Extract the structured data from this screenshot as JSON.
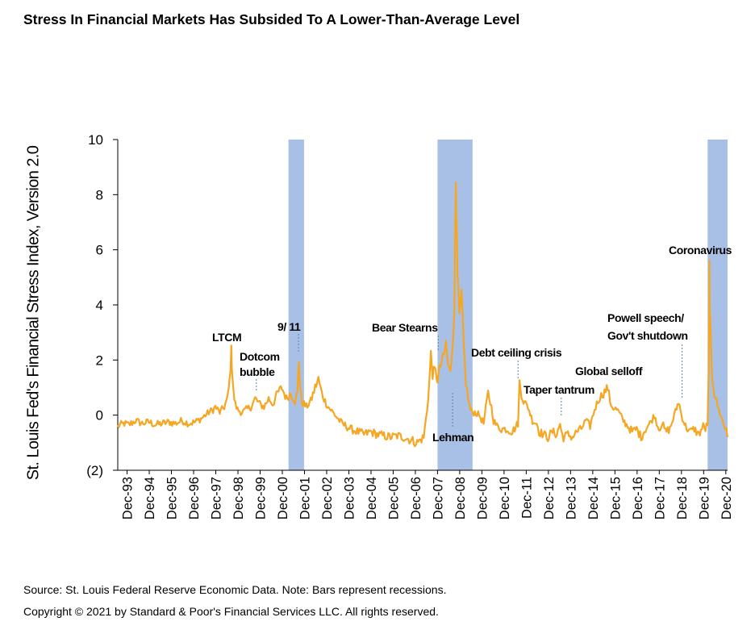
{
  "title": "Stress In Financial Markets Has Subsided To A Lower-Than-Average Level",
  "colors": {
    "line": "#F5A623",
    "recession": "#A9C0E6",
    "annotation_line": "#5B7FB5",
    "text": "#000000"
  },
  "chart_data": {
    "type": "line",
    "title": "Stress In Financial Markets Has Subsided To A Lower-Than-Average Level",
    "ylabel": "St. Louis Fed's Financial Stress Index, Version 2.0",
    "xlabel": "",
    "ylim": [
      -2,
      10
    ],
    "xlim": [
      1993.5,
      2021.0
    ],
    "yticks": [
      {
        "value": 10,
        "label": "10"
      },
      {
        "value": 8,
        "label": "8"
      },
      {
        "value": 6,
        "label": "6"
      },
      {
        "value": 4,
        "label": "4"
      },
      {
        "value": 2,
        "label": "2"
      },
      {
        "value": 0,
        "label": "0"
      },
      {
        "value": -2,
        "label": "(2)"
      }
    ],
    "xticks": [
      {
        "value": 1993.92,
        "label": "Dec-93"
      },
      {
        "value": 1994.92,
        "label": "Dec-94"
      },
      {
        "value": 1995.92,
        "label": "Dec-95"
      },
      {
        "value": 1996.92,
        "label": "Dec-96"
      },
      {
        "value": 1997.92,
        "label": "Dec-97"
      },
      {
        "value": 1998.92,
        "label": "Dec-98"
      },
      {
        "value": 1999.92,
        "label": "Dec-99"
      },
      {
        "value": 2000.92,
        "label": "Dec-00"
      },
      {
        "value": 2001.92,
        "label": "Dec-01"
      },
      {
        "value": 2002.92,
        "label": "Dec-02"
      },
      {
        "value": 2003.92,
        "label": "Dec-03"
      },
      {
        "value": 2004.92,
        "label": "Dec-04"
      },
      {
        "value": 2005.92,
        "label": "Dec-05"
      },
      {
        "value": 2006.92,
        "label": "Dec-06"
      },
      {
        "value": 2007.92,
        "label": "Dec-07"
      },
      {
        "value": 2008.92,
        "label": "Dec-08"
      },
      {
        "value": 2009.92,
        "label": "Dec-09"
      },
      {
        "value": 2010.92,
        "label": "Dec-10"
      },
      {
        "value": 2011.92,
        "label": "Dec-11"
      },
      {
        "value": 2012.92,
        "label": "Dec-12"
      },
      {
        "value": 2013.92,
        "label": "Dec-13"
      },
      {
        "value": 2014.92,
        "label": "Dec-14"
      },
      {
        "value": 2015.92,
        "label": "Dec-15"
      },
      {
        "value": 2016.92,
        "label": "Dec-16"
      },
      {
        "value": 2017.92,
        "label": "Dec-17"
      },
      {
        "value": 2018.92,
        "label": "Dec-18"
      },
      {
        "value": 2019.92,
        "label": "Dec-19"
      },
      {
        "value": 2020.92,
        "label": "Dec-20"
      }
    ],
    "recessions": [
      {
        "start": 2001.2,
        "end": 2001.9
      },
      {
        "start": 2007.92,
        "end": 2009.5
      },
      {
        "start": 2020.1,
        "end": 2021.0
      }
    ],
    "series": [
      {
        "name": "St. Louis Fed's Financial Stress Index, Version 2.0",
        "x": [
          1993.5,
          1993.8,
          1994.0,
          1994.3,
          1994.6,
          1994.9,
          1995.2,
          1995.5,
          1995.8,
          1996.1,
          1996.4,
          1996.7,
          1997.0,
          1997.3,
          1997.6,
          1997.8,
          1997.9,
          1998.1,
          1998.3,
          1998.45,
          1998.55,
          1998.62,
          1998.67,
          1998.72,
          1998.8,
          1998.9,
          1999.1,
          1999.3,
          1999.5,
          1999.7,
          1999.9,
          2000.1,
          2000.3,
          2000.5,
          2000.7,
          2000.9,
          2001.1,
          2001.3,
          2001.5,
          2001.6,
          2001.67,
          2001.72,
          2001.8,
          2002.0,
          2002.2,
          2002.4,
          2002.55,
          2002.7,
          2002.85,
          2003.0,
          2003.2,
          2003.4,
          2003.6,
          2003.8,
          2004.0,
          2004.3,
          2004.6,
          2004.9,
          2005.2,
          2005.5,
          2005.8,
          2006.1,
          2006.4,
          2006.7,
          2007.0,
          2007.3,
          2007.45,
          2007.55,
          2007.62,
          2007.7,
          2007.8,
          2007.92,
          2008.05,
          2008.2,
          2008.3,
          2008.4,
          2008.5,
          2008.6,
          2008.68,
          2008.72,
          2008.75,
          2008.78,
          2008.82,
          2008.9,
          2009.0,
          2009.1,
          2009.2,
          2009.3,
          2009.4,
          2009.5,
          2009.6,
          2009.8,
          2010.0,
          2010.2,
          2010.35,
          2010.45,
          2010.6,
          2010.8,
          2011.0,
          2011.3,
          2011.55,
          2011.62,
          2011.7,
          2011.8,
          2012.0,
          2012.2,
          2012.4,
          2012.5,
          2012.7,
          2012.9,
          2013.1,
          2013.3,
          2013.45,
          2013.5,
          2013.6,
          2013.8,
          2014.0,
          2014.2,
          2014.4,
          2014.6,
          2014.8,
          2015.0,
          2015.2,
          2015.4,
          2015.6,
          2015.7,
          2015.8,
          2016.0,
          2016.1,
          2016.3,
          2016.5,
          2016.7,
          2016.9,
          2017.1,
          2017.3,
          2017.5,
          2017.7,
          2017.9,
          2018.05,
          2018.2,
          2018.4,
          2018.6,
          2018.8,
          2018.92,
          2019.1,
          2019.3,
          2019.5,
          2019.7,
          2019.9,
          2020.0,
          2020.1,
          2020.15,
          2020.18,
          2020.2,
          2020.25,
          2020.3,
          2020.4,
          2020.5,
          2020.6,
          2020.7,
          2020.8,
          2020.9,
          2020.95,
          2021.0
        ],
        "values": [
          -0.4,
          -0.3,
          -0.35,
          -0.2,
          -0.3,
          -0.25,
          -0.35,
          -0.3,
          -0.25,
          -0.3,
          -0.2,
          -0.3,
          -0.25,
          -0.1,
          0.1,
          0.2,
          0.3,
          0.1,
          0.3,
          0.6,
          1.3,
          2.3,
          1.5,
          0.8,
          0.4,
          0.2,
          0.1,
          0.2,
          0.3,
          0.6,
          0.4,
          0.3,
          0.6,
          0.4,
          0.8,
          1.0,
          0.6,
          0.8,
          0.5,
          0.8,
          2.0,
          1.0,
          0.5,
          0.3,
          0.5,
          1.0,
          1.3,
          0.8,
          0.5,
          0.3,
          0.1,
          -0.1,
          -0.3,
          -0.4,
          -0.5,
          -0.6,
          -0.7,
          -0.6,
          -0.7,
          -0.75,
          -0.8,
          -0.75,
          -0.8,
          -0.9,
          -1.0,
          -0.8,
          0.2,
          1.2,
          2.2,
          1.5,
          1.6,
          1.3,
          1.8,
          2.1,
          2.6,
          1.8,
          1.5,
          2.6,
          4.0,
          7.0,
          9.1,
          6.5,
          5.0,
          3.5,
          4.3,
          2.5,
          1.2,
          0.6,
          0.2,
          0.1,
          0.1,
          0.0,
          -0.3,
          0.8,
          0.3,
          -0.2,
          -0.4,
          -0.5,
          -0.5,
          -0.6,
          -0.3,
          1.2,
          0.8,
          0.5,
          0.3,
          -0.2,
          -0.3,
          -0.6,
          -0.7,
          -0.8,
          -0.6,
          -0.7,
          -0.3,
          -0.6,
          -0.8,
          -0.7,
          -0.8,
          -0.6,
          -0.5,
          -0.2,
          -0.4,
          0.2,
          0.6,
          0.8,
          1.0,
          0.5,
          0.3,
          0.2,
          0.1,
          -0.2,
          -0.4,
          -0.6,
          -0.5,
          -0.8,
          -0.5,
          -0.3,
          0.0,
          -0.5,
          -0.3,
          -0.6,
          -0.5,
          0.0,
          0.5,
          0.0,
          -0.4,
          -0.6,
          -0.5,
          -0.7,
          -0.4,
          -0.5,
          -0.3,
          1.5,
          5.4,
          3.5,
          2.5,
          1.5,
          0.8,
          0.5,
          0.2,
          0.0,
          -0.3,
          -0.5,
          -0.4,
          -0.8
        ]
      }
    ],
    "annotations": [
      {
        "label": "LTCM"
      },
      {
        "label": "Dotcom"
      },
      {
        "label": "bubble"
      },
      {
        "label": "9/ 11"
      },
      {
        "label": "Bear Stearns"
      },
      {
        "label": "Lehman"
      },
      {
        "label": "Debt ceiling crisis"
      },
      {
        "label": "Taper tantrum"
      },
      {
        "label": "Global selloff"
      },
      {
        "label": "Powell speech/"
      },
      {
        "label": "Gov't shutdown"
      },
      {
        "label": "Coronavirus"
      }
    ]
  },
  "footer": {
    "source": "Source: St. Louis Federal Reserve Economic Data.  Note: Bars represent recessions.",
    "copyright": "Copyright © 2021 by Standard & Poor's Financial Services LLC. All rights reserved."
  }
}
